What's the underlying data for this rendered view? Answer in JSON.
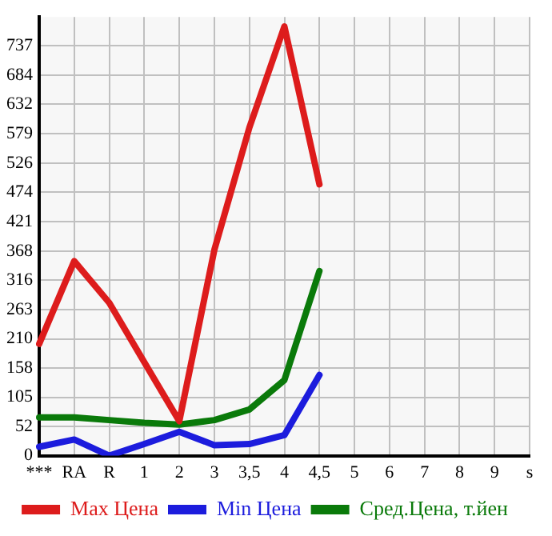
{
  "chart_data": {
    "type": "line",
    "categories": [
      "***",
      "RA",
      "R",
      "1",
      "2",
      "3",
      "3,5",
      "4",
      "4,5",
      "5",
      "6",
      "7",
      "8",
      "9",
      "s"
    ],
    "series": [
      {
        "name": "Max Цена",
        "color": "#dd1c1c",
        "values": [
          201,
          350,
          275,
          168,
          62,
          370,
          590,
          772,
          488,
          null,
          null,
          null,
          null,
          null,
          null
        ]
      },
      {
        "name": "Min Цена",
        "color": "#1c1cdd",
        "values": [
          16,
          29,
          0,
          21,
          43,
          19,
          21,
          37,
          145,
          null,
          null,
          null,
          null,
          null,
          null
        ]
      },
      {
        "name": "Сред.Цена, т.йен",
        "color": "#0a7a0a",
        "values": [
          69,
          69,
          64,
          59,
          56,
          64,
          83,
          136,
          332,
          null,
          null,
          null,
          null,
          null,
          null
        ]
      }
    ],
    "ylim": [
      0,
      789
    ],
    "yticks": [
      0,
      52,
      105,
      158,
      210,
      263,
      316,
      368,
      421,
      474,
      526,
      579,
      632,
      684,
      737
    ],
    "grid": true,
    "legend": "bottom",
    "marker": "none",
    "line_style": "solid"
  }
}
